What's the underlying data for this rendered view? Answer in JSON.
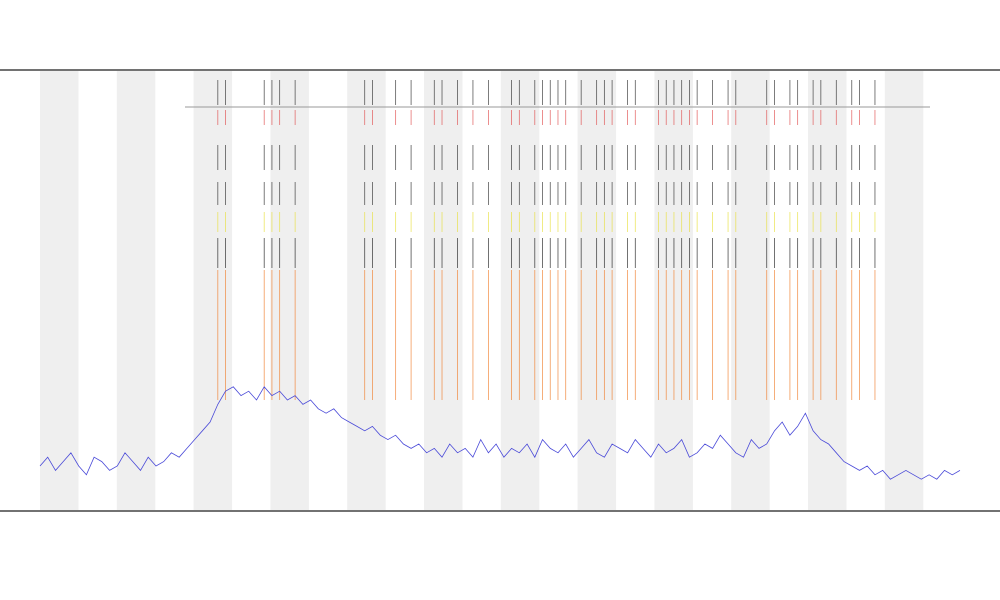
{
  "chart_data": {
    "type": "line",
    "color": "#4a4ad8",
    "xlim": [
      0,
      119
    ],
    "ylim": [
      0,
      100
    ],
    "values": [
      10,
      12,
      9,
      11,
      13,
      10,
      8,
      12,
      11,
      9,
      10,
      13,
      11,
      9,
      12,
      10,
      11,
      13,
      12,
      14,
      16,
      18,
      20,
      24,
      27,
      28,
      26,
      27,
      25,
      28,
      26,
      27,
      25,
      26,
      24,
      25,
      23,
      22,
      23,
      21,
      20,
      19,
      18,
      19,
      17,
      16,
      17,
      15,
      14,
      15,
      13,
      14,
      12,
      15,
      13,
      14,
      12,
      16,
      13,
      15,
      12,
      14,
      13,
      15,
      12,
      16,
      14,
      13,
      15,
      12,
      14,
      16,
      13,
      12,
      15,
      14,
      13,
      16,
      14,
      12,
      15,
      13,
      14,
      16,
      12,
      13,
      15,
      14,
      17,
      15,
      13,
      12,
      16,
      14,
      15,
      18,
      20,
      17,
      19,
      22,
      18,
      16,
      15,
      13,
      11,
      10,
      9,
      10,
      8,
      9,
      7,
      8,
      9,
      8,
      7,
      8,
      7,
      9,
      8,
      9
    ],
    "events": [
      23,
      24,
      29,
      30,
      31,
      33,
      42,
      43,
      46,
      48,
      51,
      52,
      54,
      56,
      58,
      61,
      62,
      64,
      65,
      66,
      67,
      68,
      70,
      72,
      73,
      74,
      76,
      77,
      80,
      81,
      82,
      83,
      84,
      85,
      87,
      89,
      90,
      94,
      95,
      97,
      98,
      100,
      101,
      103,
      105,
      106,
      108
    ]
  }
}
